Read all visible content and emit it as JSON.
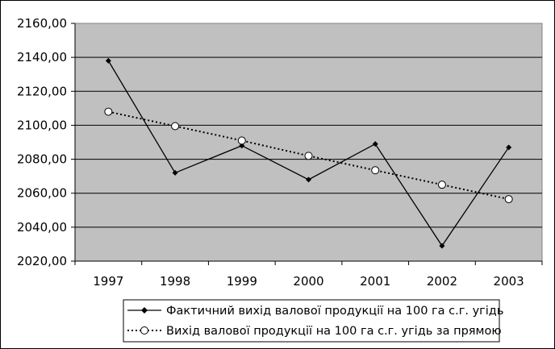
{
  "chart_data": {
    "type": "line",
    "x": [
      "1997",
      "1998",
      "1999",
      "2000",
      "2001",
      "2002",
      "2003"
    ],
    "ylim": [
      2020,
      2160
    ],
    "yticks": [
      "2020,00",
      "2040,00",
      "2060,00",
      "2080,00",
      "2100,00",
      "2120,00",
      "2140,00",
      "2160,00"
    ],
    "grid": true,
    "legend_position": "bottom",
    "colors": {
      "plot_background": "#c0c0c0",
      "series": "#000000",
      "grid": "#000000"
    },
    "series": [
      {
        "name": "Фактичний вихід валової продукції на 100 га с.г. угідь",
        "style": "solid line, diamond markers",
        "values": [
          2138,
          2072,
          2088,
          2068,
          2089,
          2029,
          2087
        ]
      },
      {
        "name": "Вихід валової продукції на 100 га с.г. угідь за прямою",
        "style": "dotted line, open circle markers",
        "values": [
          2108,
          2099.5,
          2091,
          2082,
          2073.5,
          2065,
          2056.5
        ]
      }
    ]
  }
}
